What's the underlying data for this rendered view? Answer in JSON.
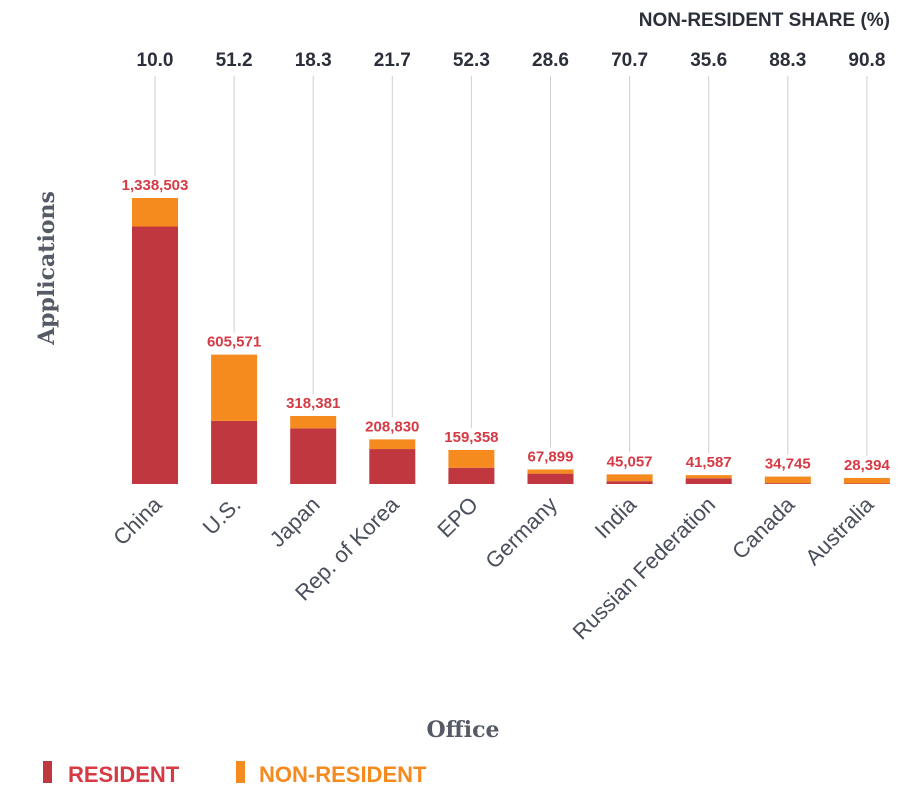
{
  "chart_data": {
    "type": "bar",
    "stacked": true,
    "xlabel": "Office",
    "ylabel": "Applications",
    "top_axis_title": "NON-RESIDENT SHARE (%)",
    "categories": [
      "China",
      "U.S.",
      "Japan",
      "Rep. of Korea",
      "EPO",
      "Germany",
      "India",
      "Russian Federation",
      "Canada",
      "Australia"
    ],
    "non_resident_share": [
      "10.0",
      "51.2",
      "18.3",
      "21.7",
      "52.3",
      "28.6",
      "70.7",
      "35.6",
      "88.3",
      "90.8"
    ],
    "total_labels": [
      "1,338,503",
      "605,571",
      "318,381",
      "208,830",
      "159,358",
      "67,899",
      "45,057",
      "41,587",
      "34,745",
      "28,394"
    ],
    "series": [
      {
        "name": "RESIDENT",
        "color": "#c0373f",
        "values": [
          1204981,
          295327,
          260290,
          163518,
          76016,
          48480,
          13202,
          26783,
          4065,
          2615
        ]
      },
      {
        "name": "NON-RESIDENT",
        "color": "#f58a1f",
        "values": [
          133522,
          310244,
          58091,
          45312,
          83342,
          19419,
          31855,
          14804,
          30680,
          25779
        ]
      }
    ],
    "ylim": [
      0,
      1338503
    ],
    "grid": false,
    "legend_position": "bottom-left"
  },
  "colors": {
    "label_red": "#d63a44",
    "text_dark": "#2b2f3a",
    "guide_line": "#cfcfcf"
  }
}
